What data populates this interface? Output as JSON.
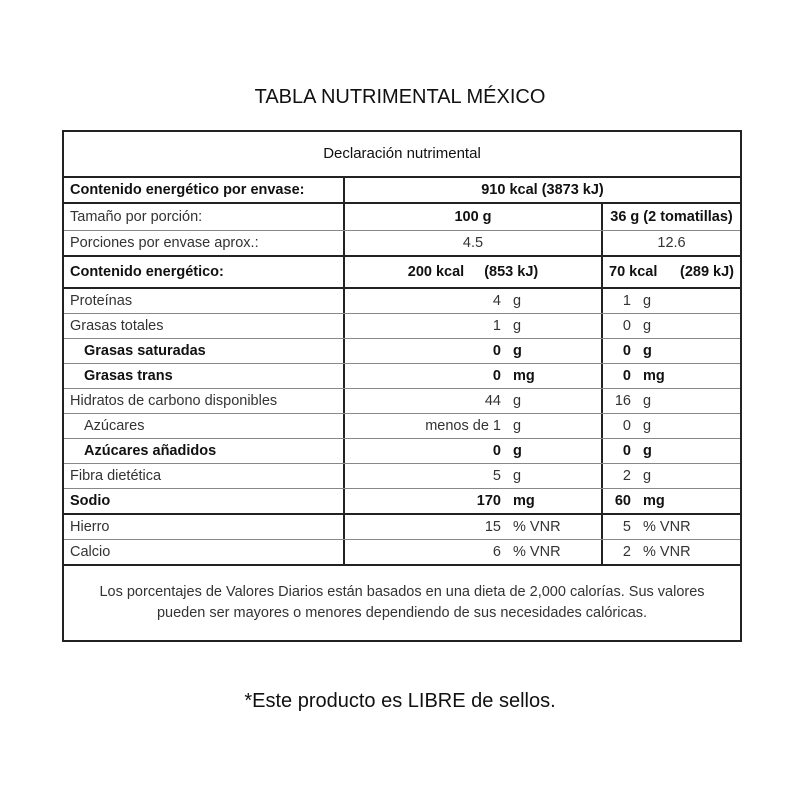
{
  "title": "TABLA NUTRIMENTAL MÉXICO",
  "header": "Declaración nutrimental",
  "energy_per_pack": {
    "label": "Contenido energético por envase:",
    "value": "910 kcal (3873 kJ)"
  },
  "serving_size": {
    "label": "Tamaño por porción:",
    "col1": "100 g",
    "col2": "36 g (2 tomatillas)"
  },
  "servings": {
    "label": "Porciones por envase aprox.:",
    "col1": "4.5",
    "col2": "12.6"
  },
  "energy": {
    "label": "Contenido energético:",
    "col1_kcal": "200 kcal",
    "col1_kj": "(853 kJ)",
    "col2_kcal": "70 kcal",
    "col2_kj": "(289 kJ)"
  },
  "nutrients": [
    {
      "label": "Proteínas",
      "v1": "4",
      "u1": "g",
      "v2": "1",
      "u2": "g"
    },
    {
      "label": "Grasas totales",
      "v1": "1",
      "u1": "g",
      "v2": "0",
      "u2": "g"
    },
    {
      "label": "Grasas saturadas",
      "v1": "0",
      "u1": "g",
      "v2": "0",
      "u2": "g"
    },
    {
      "label": "Grasas trans",
      "v1": "0",
      "u1": "mg",
      "v2": "0",
      "u2": "mg"
    },
    {
      "label": "Hidratos de carbono disponibles",
      "v1": "44",
      "u1": "g",
      "v2": "16",
      "u2": "g"
    },
    {
      "label": "Azúcares",
      "v1": "menos de 1",
      "u1": "g",
      "v2": "0",
      "u2": "g"
    },
    {
      "label": "Azúcares añadidos",
      "v1": "0",
      "u1": "g",
      "v2": "0",
      "u2": "g"
    },
    {
      "label": "Fibra dietética",
      "v1": "5",
      "u1": "g",
      "v2": "2",
      "u2": "g"
    },
    {
      "label": "Sodio",
      "v1": "170",
      "u1": "mg",
      "v2": "60",
      "u2": "mg"
    },
    {
      "label": "Hierro",
      "v1": "15",
      "u1": "% VNR",
      "v2": "5",
      "u2": "% VNR"
    },
    {
      "label": "Calcio",
      "v1": "6",
      "u1": "% VNR",
      "v2": "2",
      "u2": "% VNR"
    }
  ],
  "note": "Los porcentajes de Valores Diarios están basados en una dieta de 2,000 calorías. Sus valores pueden ser mayores o menores dependiendo de sus necesidades calóricas.",
  "footer": "*Este producto es LIBRE de sellos."
}
